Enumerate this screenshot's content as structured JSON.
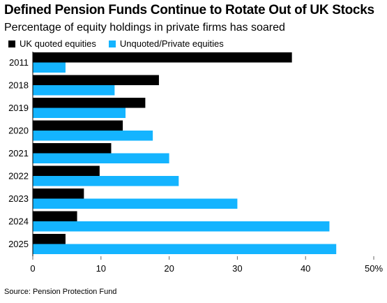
{
  "title": "Defined Pension Funds Continue to Rotate Out of UK Stocks",
  "subtitle": "Percentage of equity holdings in private firms has soared",
  "source": "Source: Pension Protection Fund",
  "colors": {
    "uk_quoted": "#000000",
    "unquoted": "#14b4ff",
    "axis": "#000000",
    "grid": "#e0e0e0"
  },
  "legend": [
    {
      "label": "UK quoted equities",
      "color": "#000000"
    },
    {
      "label": "Unquoted/Private equities",
      "color": "#14b4ff"
    }
  ],
  "chart_data": {
    "type": "bar",
    "orientation": "horizontal",
    "categories": [
      "2011",
      "2018",
      "2019",
      "2020",
      "2021",
      "2022",
      "2023",
      "2024",
      "2025"
    ],
    "series": [
      {
        "name": "UK quoted equities",
        "values": [
          38,
          18.5,
          16.5,
          13.2,
          11.5,
          9.8,
          7.5,
          6.5,
          4.8
        ]
      },
      {
        "name": "Unquoted/Private equities",
        "values": [
          4.8,
          12,
          13.6,
          17.6,
          20,
          21.4,
          30,
          43.5,
          44.5
        ]
      }
    ],
    "xlim": [
      0,
      50
    ],
    "xticks": [
      "0",
      "10",
      "20",
      "30",
      "40",
      "50%"
    ],
    "xlabel": "",
    "ylabel": "",
    "legend_position": "top-left"
  }
}
